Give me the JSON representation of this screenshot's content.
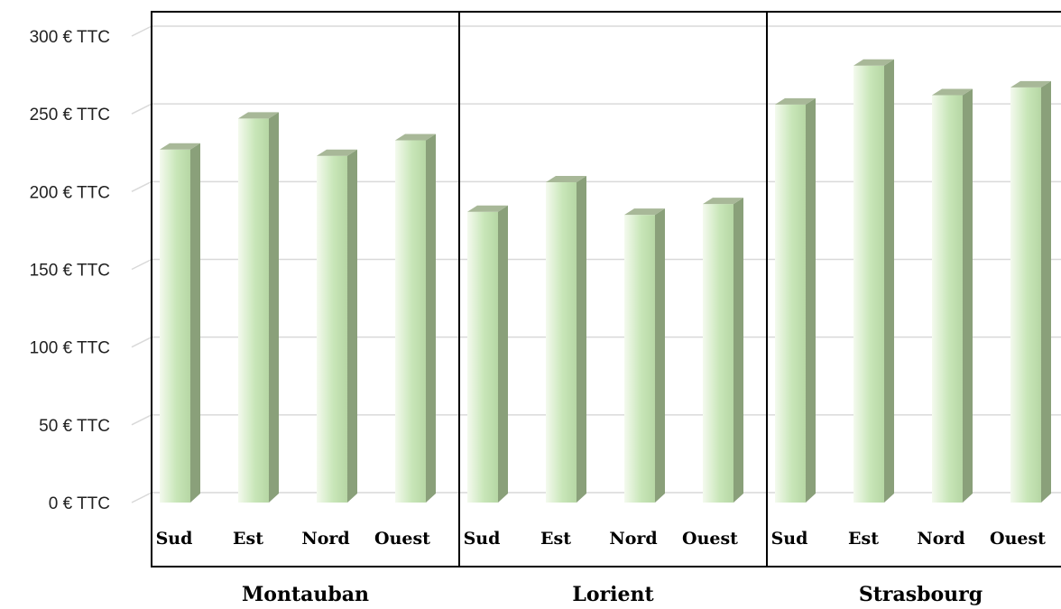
{
  "chart_data": {
    "type": "bar",
    "style": "3d-column",
    "groups": [
      {
        "name": "Montauban",
        "categories": [
          "Sud",
          "Est",
          "Nord",
          "Ouest"
        ],
        "values": [
          227,
          247,
          223,
          233
        ]
      },
      {
        "name": "Lorient",
        "categories": [
          "Sud",
          "Est",
          "Nord",
          "Ouest"
        ],
        "values": [
          187,
          206,
          185,
          192
        ]
      },
      {
        "name": "Strasbourg",
        "categories": [
          "Sud",
          "Est",
          "Nord",
          "Ouest"
        ],
        "values": [
          256,
          281,
          262,
          267
        ]
      }
    ],
    "yticks": [
      "0 € TTC",
      "50 € TTC",
      "100 € TTC",
      "150 € TTC",
      "200 € TTC",
      "250 € TTC",
      "300 € TTC"
    ],
    "ylim": [
      0,
      300
    ],
    "grid": true,
    "colors": {
      "bar_light": "#f4faee",
      "bar_mid": "#c8e6b8",
      "bar_side": "#8aa07a",
      "bar_top": "#a8b898",
      "grid": "#d9d9d9",
      "frame": "#000000"
    }
  }
}
